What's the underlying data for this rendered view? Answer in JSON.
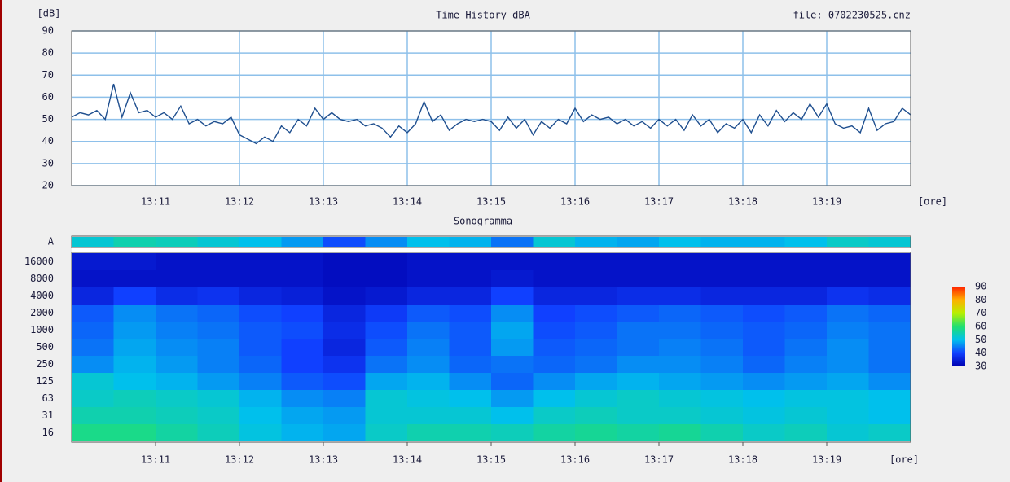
{
  "chart_data": [
    {
      "type": "line",
      "title": "Time History dBA",
      "y_label": "[dB]",
      "x_label": "[ore]",
      "annotation": "file: 0702230525.cnz",
      "color": "#1f4f8f",
      "grid": true,
      "grid_color": "#8ec0ea",
      "xlim": [
        10,
        20
      ],
      "xticks": [
        {
          "value": 11,
          "label": "13:11"
        },
        {
          "value": 12,
          "label": "13:12"
        },
        {
          "value": 13,
          "label": "13:13"
        },
        {
          "value": 14,
          "label": "13:14"
        },
        {
          "value": 15,
          "label": "13:15"
        },
        {
          "value": 16,
          "label": "13:16"
        },
        {
          "value": 17,
          "label": "13:17"
        },
        {
          "value": 18,
          "label": "13:18"
        },
        {
          "value": 19,
          "label": "13:19"
        }
      ],
      "ylim": [
        20,
        90
      ],
      "yticks": [
        20,
        30,
        40,
        50,
        60,
        70,
        80,
        90
      ],
      "x": [
        10.0,
        10.1,
        10.2,
        10.3,
        10.4,
        10.5,
        10.6,
        10.7,
        10.8,
        10.9,
        11.0,
        11.1,
        11.2,
        11.3,
        11.4,
        11.5,
        11.6,
        11.7,
        11.8,
        11.9,
        12.0,
        12.1,
        12.2,
        12.3,
        12.4,
        12.5,
        12.6,
        12.7,
        12.8,
        12.9,
        13.0,
        13.1,
        13.2,
        13.3,
        13.4,
        13.5,
        13.6,
        13.7,
        13.8,
        13.9,
        14.0,
        14.1,
        14.2,
        14.3,
        14.4,
        14.5,
        14.6,
        14.7,
        14.8,
        14.9,
        15.0,
        15.1,
        15.2,
        15.3,
        15.4,
        15.5,
        15.6,
        15.7,
        15.8,
        15.9,
        16.0,
        16.1,
        16.2,
        16.3,
        16.4,
        16.5,
        16.6,
        16.7,
        16.8,
        16.9,
        17.0,
        17.1,
        17.2,
        17.3,
        17.4,
        17.5,
        17.6,
        17.7,
        17.8,
        17.9,
        18.0,
        18.1,
        18.2,
        18.3,
        18.4,
        18.5,
        18.6,
        18.7,
        18.8,
        18.9,
        19.0,
        19.1,
        19.2,
        19.3,
        19.4,
        19.5,
        19.6,
        19.7,
        19.8,
        19.9,
        20.0
      ],
      "values": [
        51,
        53,
        52,
        54,
        50,
        66,
        51,
        62,
        53,
        54,
        51,
        53,
        50,
        56,
        48,
        50,
        47,
        49,
        48,
        51,
        43,
        41,
        39,
        42,
        40,
        47,
        44,
        50,
        47,
        55,
        50,
        53,
        50,
        49,
        50,
        47,
        48,
        46,
        42,
        47,
        44,
        48,
        58,
        49,
        52,
        45,
        48,
        50,
        49,
        50,
        49,
        45,
        51,
        46,
        50,
        43,
        49,
        46,
        50,
        48,
        55,
        49,
        52,
        50,
        51,
        48,
        50,
        47,
        49,
        46,
        50,
        47,
        50,
        45,
        52,
        47,
        50,
        44,
        48,
        46,
        50,
        44,
        52,
        47,
        54,
        49,
        53,
        50,
        57,
        51,
        57,
        48,
        46,
        47,
        44,
        55,
        45,
        48,
        49,
        55,
        52
      ]
    },
    {
      "type": "heatmap",
      "title": "Sonogramma",
      "x_label": "[ore]",
      "xlim": [
        10,
        20
      ],
      "xticks": [
        {
          "value": 11,
          "label": "13:11"
        },
        {
          "value": 12,
          "label": "13:12"
        },
        {
          "value": 13,
          "label": "13:13"
        },
        {
          "value": 14,
          "label": "13:14"
        },
        {
          "value": 15,
          "label": "13:15"
        },
        {
          "value": 16,
          "label": "13:16"
        },
        {
          "value": 17,
          "label": "13:17"
        },
        {
          "value": 18,
          "label": "13:18"
        },
        {
          "value": 19,
          "label": "13:19"
        }
      ],
      "rows": [
        "A",
        "16000",
        "8000",
        "4000",
        "2000",
        "1000",
        "500",
        "250",
        "125",
        "63",
        "31",
        "16"
      ],
      "z": [
        [
          52,
          55,
          54,
          52,
          50,
          47,
          41,
          46,
          50,
          49,
          44,
          52,
          49,
          48,
          50,
          49,
          49,
          50,
          53,
          52
        ],
        [
          34,
          34,
          33,
          33,
          33,
          33,
          32,
          32,
          33,
          33,
          33,
          33,
          33,
          33,
          33,
          33,
          33,
          33,
          33,
          33
        ],
        [
          33,
          33,
          33,
          33,
          33,
          33,
          32,
          32,
          33,
          33,
          34,
          33,
          33,
          33,
          33,
          33,
          33,
          33,
          33,
          33
        ],
        [
          36,
          40,
          37,
          38,
          36,
          35,
          33,
          34,
          36,
          36,
          40,
          36,
          36,
          37,
          37,
          36,
          36,
          36,
          38,
          37
        ],
        [
          42,
          46,
          44,
          43,
          41,
          40,
          36,
          39,
          42,
          41,
          46,
          40,
          41,
          42,
          43,
          42,
          41,
          42,
          44,
          43
        ],
        [
          43,
          47,
          45,
          44,
          42,
          41,
          37,
          41,
          44,
          42,
          48,
          41,
          42,
          44,
          44,
          43,
          42,
          43,
          45,
          44
        ],
        [
          44,
          48,
          46,
          45,
          42,
          40,
          36,
          42,
          45,
          42,
          47,
          42,
          43,
          44,
          45,
          44,
          42,
          44,
          46,
          44
        ],
        [
          46,
          49,
          47,
          45,
          43,
          40,
          38,
          44,
          46,
          43,
          44,
          43,
          44,
          46,
          46,
          45,
          43,
          45,
          46,
          44
        ],
        [
          52,
          50,
          49,
          47,
          45,
          42,
          41,
          48,
          49,
          46,
          43,
          46,
          48,
          49,
          48,
          47,
          46,
          47,
          48,
          46
        ],
        [
          53,
          54,
          53,
          52,
          49,
          46,
          45,
          52,
          51,
          50,
          47,
          50,
          52,
          53,
          52,
          51,
          50,
          51,
          51,
          50
        ],
        [
          55,
          55,
          54,
          53,
          50,
          48,
          47,
          52,
          52,
          52,
          50,
          53,
          54,
          53,
          53,
          52,
          51,
          52,
          51,
          50
        ],
        [
          58,
          58,
          56,
          54,
          51,
          49,
          48,
          53,
          55,
          55,
          54,
          56,
          57,
          56,
          57,
          55,
          53,
          54,
          52,
          53
        ]
      ],
      "colorscale": {
        "range": [
          30,
          90
        ],
        "ticks": [
          30,
          40,
          50,
          60,
          70,
          80,
          90
        ],
        "colors": [
          "#0000b0",
          "#1040ff",
          "#00c0ec",
          "#20e070",
          "#b8f000",
          "#ffb000",
          "#ff2000"
        ]
      }
    }
  ]
}
